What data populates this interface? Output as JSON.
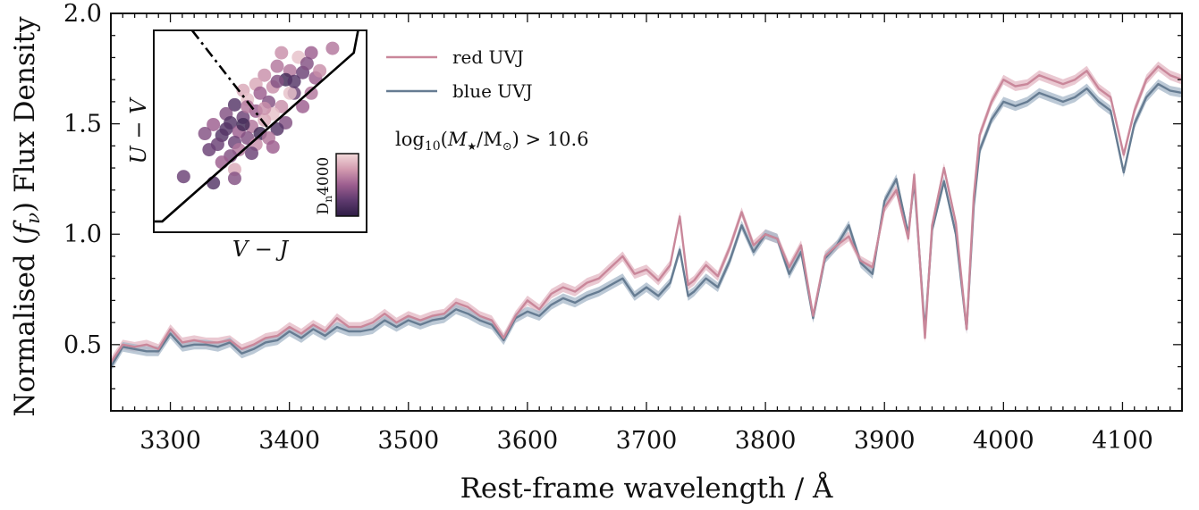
{
  "chart_data": {
    "type": "line",
    "title": "",
    "xlabel": "Rest-frame wavelength / Å",
    "ylabel": "Normalised (f_ν) Flux Density",
    "ylabel_parts": {
      "pre": "Normalised (",
      "var": "f",
      "sub": "ν",
      "post": ") Flux Density"
    },
    "xlim": [
      3250,
      4150
    ],
    "ylim": [
      0.2,
      2.0
    ],
    "xticks": [
      3300,
      3400,
      3500,
      3600,
      3700,
      3800,
      3900,
      4000,
      4100
    ],
    "yticks": [
      0.5,
      1.0,
      1.5,
      2.0
    ],
    "ytick_labels": [
      "0.5",
      "1.0",
      "1.5",
      "2.0"
    ],
    "legend_position": "top-center",
    "annotation": {
      "text": "log10(M★/M⊙) > 10.6",
      "parts": {
        "log": "log",
        "sub10": "10",
        "open": "(",
        "m": "M",
        "star": "★",
        "slash": "/M",
        "sun": "⊙",
        "close": ") > 10.6"
      }
    },
    "series": [
      {
        "name": "red UVJ",
        "color": "#c9879a",
        "band_color": "#e3b7c3",
        "x": [
          3250,
          3260,
          3270,
          3280,
          3290,
          3300,
          3310,
          3320,
          3330,
          3340,
          3350,
          3360,
          3370,
          3380,
          3390,
          3400,
          3410,
          3420,
          3430,
          3440,
          3450,
          3460,
          3470,
          3480,
          3490,
          3500,
          3510,
          3520,
          3530,
          3540,
          3550,
          3560,
          3570,
          3580,
          3590,
          3600,
          3610,
          3620,
          3630,
          3640,
          3650,
          3660,
          3670,
          3680,
          3690,
          3700,
          3710,
          3720,
          3728,
          3735,
          3740,
          3750,
          3760,
          3770,
          3780,
          3790,
          3800,
          3810,
          3820,
          3830,
          3840,
          3850,
          3860,
          3870,
          3880,
          3890,
          3900,
          3910,
          3920,
          3925,
          3934,
          3940,
          3950,
          3960,
          3969,
          3975,
          3980,
          3990,
          4000,
          4010,
          4020,
          4030,
          4040,
          4050,
          4060,
          4070,
          4080,
          4090,
          4101,
          4110,
          4120,
          4130,
          4140,
          4150
        ],
        "values": [
          0.42,
          0.5,
          0.49,
          0.5,
          0.48,
          0.57,
          0.51,
          0.52,
          0.51,
          0.51,
          0.52,
          0.48,
          0.5,
          0.53,
          0.54,
          0.58,
          0.55,
          0.59,
          0.56,
          0.62,
          0.58,
          0.58,
          0.6,
          0.64,
          0.6,
          0.63,
          0.61,
          0.63,
          0.64,
          0.69,
          0.67,
          0.63,
          0.61,
          0.53,
          0.63,
          0.7,
          0.66,
          0.73,
          0.76,
          0.74,
          0.78,
          0.8,
          0.85,
          0.9,
          0.82,
          0.84,
          0.79,
          0.86,
          1.08,
          0.77,
          0.79,
          0.86,
          0.81,
          0.94,
          1.1,
          0.95,
          1.0,
          0.98,
          0.85,
          0.95,
          0.63,
          0.9,
          0.95,
          0.99,
          0.88,
          0.85,
          1.12,
          1.2,
          0.98,
          1.27,
          0.53,
          1.04,
          1.3,
          1.05,
          0.57,
          1.17,
          1.45,
          1.6,
          1.7,
          1.67,
          1.68,
          1.72,
          1.7,
          1.68,
          1.7,
          1.74,
          1.66,
          1.62,
          1.36,
          1.56,
          1.7,
          1.76,
          1.72,
          1.7
        ]
      },
      {
        "name": "blue UVJ",
        "color": "#667c92",
        "band_color": "#a6b7c8",
        "x": [
          3250,
          3260,
          3270,
          3280,
          3290,
          3300,
          3310,
          3320,
          3330,
          3340,
          3350,
          3360,
          3370,
          3380,
          3390,
          3400,
          3410,
          3420,
          3430,
          3440,
          3450,
          3460,
          3470,
          3480,
          3490,
          3500,
          3510,
          3520,
          3530,
          3540,
          3550,
          3560,
          3570,
          3580,
          3590,
          3600,
          3610,
          3620,
          3630,
          3640,
          3650,
          3660,
          3670,
          3680,
          3690,
          3700,
          3710,
          3720,
          3728,
          3735,
          3740,
          3750,
          3760,
          3770,
          3780,
          3790,
          3800,
          3810,
          3820,
          3830,
          3840,
          3850,
          3860,
          3870,
          3880,
          3890,
          3900,
          3910,
          3920,
          3925,
          3934,
          3940,
          3950,
          3960,
          3969,
          3975,
          3980,
          3990,
          4000,
          4010,
          4020,
          4030,
          4040,
          4050,
          4060,
          4070,
          4080,
          4090,
          4101,
          4110,
          4120,
          4130,
          4140,
          4150
        ],
        "values": [
          0.4,
          0.49,
          0.48,
          0.47,
          0.47,
          0.55,
          0.49,
          0.5,
          0.5,
          0.49,
          0.51,
          0.46,
          0.48,
          0.51,
          0.52,
          0.56,
          0.53,
          0.57,
          0.54,
          0.58,
          0.56,
          0.56,
          0.57,
          0.61,
          0.58,
          0.61,
          0.59,
          0.61,
          0.62,
          0.66,
          0.64,
          0.61,
          0.59,
          0.52,
          0.62,
          0.65,
          0.63,
          0.68,
          0.71,
          0.69,
          0.72,
          0.74,
          0.77,
          0.8,
          0.72,
          0.76,
          0.72,
          0.78,
          0.93,
          0.72,
          0.74,
          0.8,
          0.76,
          0.88,
          1.04,
          0.92,
          1.0,
          0.98,
          0.82,
          0.92,
          0.62,
          0.89,
          0.95,
          1.04,
          0.87,
          0.82,
          1.15,
          1.25,
          1.0,
          1.24,
          0.56,
          1.02,
          1.24,
          1.0,
          0.57,
          1.13,
          1.38,
          1.52,
          1.6,
          1.58,
          1.6,
          1.64,
          1.62,
          1.6,
          1.62,
          1.66,
          1.6,
          1.56,
          1.28,
          1.5,
          1.62,
          1.68,
          1.65,
          1.64
        ]
      }
    ],
    "inset": {
      "type": "scatter",
      "xlabel": "V − J",
      "ylabel": "U − V",
      "xlim": [
        0.0,
        2.5
      ],
      "ylim": [
        0.0,
        2.25
      ],
      "selection_boundary": [
        [
          0.0,
          0.12
        ],
        [
          0.1,
          0.12
        ],
        [
          2.35,
          2.0
        ],
        [
          2.4,
          2.25
        ]
      ],
      "dashdot_line": [
        [
          0.45,
          2.25
        ],
        [
          1.35,
          1.15
        ]
      ],
      "colorbar_label": "Dn4000",
      "colorbar_label_parts": {
        "main": "D",
        "sub": "n",
        "rest": "4000"
      },
      "colorbar_range": [
        1.2,
        1.7
      ],
      "colormap": [
        "#2e1d45",
        "#5e3a6e",
        "#9c5e8f",
        "#d39bb0",
        "#f3dada"
      ],
      "points": [
        {
          "x": 1.5,
          "y": 2.0,
          "c": 1.55
        },
        {
          "x": 1.85,
          "y": 2.0,
          "c": 1.45
        },
        {
          "x": 2.1,
          "y": 2.05,
          "c": 1.5
        },
        {
          "x": 1.7,
          "y": 1.95,
          "c": 1.65
        },
        {
          "x": 1.45,
          "y": 1.85,
          "c": 1.5
        },
        {
          "x": 1.6,
          "y": 1.8,
          "c": 1.5
        },
        {
          "x": 1.3,
          "y": 1.75,
          "c": 1.55
        },
        {
          "x": 1.75,
          "y": 1.78,
          "c": 1.35
        },
        {
          "x": 1.55,
          "y": 1.7,
          "c": 1.25
        },
        {
          "x": 1.9,
          "y": 1.72,
          "c": 1.45
        },
        {
          "x": 1.2,
          "y": 1.65,
          "c": 1.6
        },
        {
          "x": 1.4,
          "y": 1.62,
          "c": 1.55
        },
        {
          "x": 1.05,
          "y": 1.58,
          "c": 1.6
        },
        {
          "x": 1.25,
          "y": 1.55,
          "c": 1.45
        },
        {
          "x": 1.65,
          "y": 1.55,
          "c": 1.35
        },
        {
          "x": 1.85,
          "y": 1.55,
          "c": 1.5
        },
        {
          "x": 1.1,
          "y": 1.48,
          "c": 1.65
        },
        {
          "x": 1.35,
          "y": 1.45,
          "c": 1.4
        },
        {
          "x": 0.95,
          "y": 1.42,
          "c": 1.3
        },
        {
          "x": 1.5,
          "y": 1.4,
          "c": 1.55
        },
        {
          "x": 1.75,
          "y": 1.4,
          "c": 1.45
        },
        {
          "x": 1.2,
          "y": 1.35,
          "c": 1.45
        },
        {
          "x": 1.4,
          "y": 1.32,
          "c": 1.65
        },
        {
          "x": 0.85,
          "y": 1.32,
          "c": 1.4
        },
        {
          "x": 1.05,
          "y": 1.28,
          "c": 1.35
        },
        {
          "x": 1.3,
          "y": 1.25,
          "c": 1.6
        },
        {
          "x": 1.55,
          "y": 1.22,
          "c": 1.4
        },
        {
          "x": 0.9,
          "y": 1.22,
          "c": 1.3
        },
        {
          "x": 1.15,
          "y": 1.18,
          "c": 1.5
        },
        {
          "x": 1.45,
          "y": 1.15,
          "c": 1.3
        },
        {
          "x": 0.7,
          "y": 1.2,
          "c": 1.45
        },
        {
          "x": 1.0,
          "y": 1.12,
          "c": 1.45
        },
        {
          "x": 1.25,
          "y": 1.1,
          "c": 1.25
        },
        {
          "x": 0.6,
          "y": 1.1,
          "c": 1.4
        },
        {
          "x": 0.8,
          "y": 1.08,
          "c": 1.3
        },
        {
          "x": 1.1,
          "y": 1.05,
          "c": 1.4
        },
        {
          "x": 1.35,
          "y": 1.05,
          "c": 1.5
        },
        {
          "x": 0.95,
          "y": 1.0,
          "c": 1.35
        },
        {
          "x": 1.2,
          "y": 0.98,
          "c": 1.55
        },
        {
          "x": 0.75,
          "y": 0.98,
          "c": 1.35
        },
        {
          "x": 1.0,
          "y": 0.92,
          "c": 1.5
        },
        {
          "x": 1.4,
          "y": 0.95,
          "c": 1.45
        },
        {
          "x": 0.65,
          "y": 0.92,
          "c": 1.35
        },
        {
          "x": 0.9,
          "y": 0.85,
          "c": 1.4
        },
        {
          "x": 1.15,
          "y": 0.88,
          "c": 1.35
        },
        {
          "x": 0.8,
          "y": 0.78,
          "c": 1.45
        },
        {
          "x": 0.95,
          "y": 0.7,
          "c": 1.6
        },
        {
          "x": 0.35,
          "y": 0.62,
          "c": 1.35
        },
        {
          "x": 0.95,
          "y": 0.6,
          "c": 1.4
        },
        {
          "x": 0.7,
          "y": 0.55,
          "c": 1.3
        },
        {
          "x": 1.6,
          "y": 1.55,
          "c": 1.65
        },
        {
          "x": 1.8,
          "y": 1.88,
          "c": 1.4
        },
        {
          "x": 1.95,
          "y": 1.8,
          "c": 1.55
        },
        {
          "x": 1.45,
          "y": 1.68,
          "c": 1.4
        },
        {
          "x": 1.65,
          "y": 1.68,
          "c": 1.3
        },
        {
          "x": 1.1,
          "y": 1.4,
          "c": 1.5
        },
        {
          "x": 1.3,
          "y": 1.38,
          "c": 1.55
        },
        {
          "x": 0.85,
          "y": 1.15,
          "c": 1.3
        },
        {
          "x": 1.05,
          "y": 1.2,
          "c": 1.25
        }
      ]
    }
  }
}
